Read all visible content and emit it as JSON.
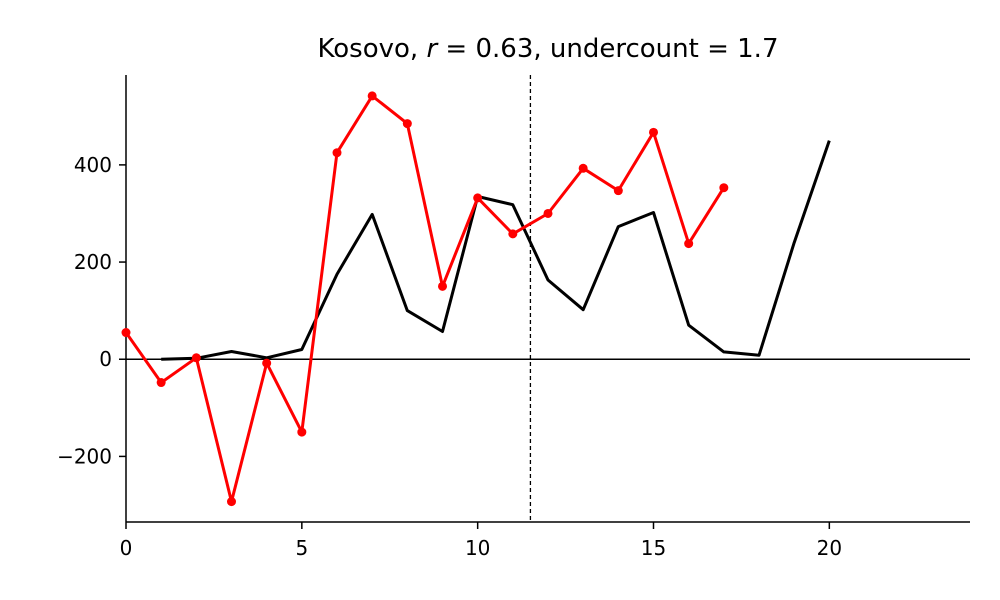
{
  "chart_data": {
    "type": "line",
    "title": {
      "prefix": "Kosovo, ",
      "r_symbol": "r",
      "r_part": " = 0.63, undercount = 1.7"
    },
    "xlabel": "",
    "ylabel": "",
    "xlim": [
      0,
      24
    ],
    "ylim": [
      -335,
      585
    ],
    "x_ticks": [
      0,
      5,
      10,
      15,
      20
    ],
    "y_ticks": [
      -200,
      0,
      200,
      400
    ],
    "y_tick_labels": [
      "−200",
      "0",
      "200",
      "400"
    ],
    "grid": false,
    "legend": false,
    "zero_line": 0,
    "vline_x": 11.5,
    "series": [
      {
        "color": "#ff0000",
        "markers": true,
        "x": [
          0,
          1,
          2,
          3,
          4,
          5,
          6,
          7,
          8,
          9,
          10,
          11,
          12,
          13,
          14,
          15,
          16,
          17
        ],
        "y": [
          55,
          -48,
          3,
          -293,
          -8,
          -150,
          425,
          542,
          485,
          150,
          332,
          258,
          300,
          393,
          347,
          467,
          238,
          353
        ]
      },
      {
        "color": "#000000",
        "markers": false,
        "x": [
          1,
          2,
          3,
          4,
          5,
          6,
          7,
          8,
          9,
          10,
          11,
          12,
          13,
          14,
          15,
          16,
          17,
          18,
          19,
          20
        ],
        "y": [
          0,
          2,
          16,
          3,
          20,
          175,
          298,
          100,
          57,
          335,
          318,
          163,
          102,
          273,
          302,
          70,
          15,
          8,
          240,
          450
        ]
      }
    ]
  }
}
